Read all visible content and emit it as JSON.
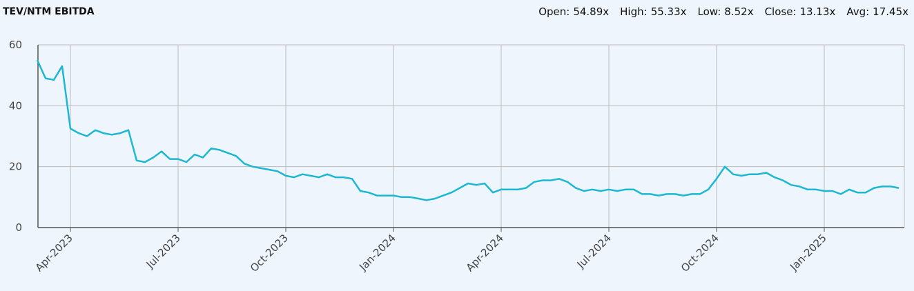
{
  "chart_data": {
    "type": "line",
    "title": "TEV/NTM EBITDA",
    "stats": {
      "labels": [
        "Open:",
        "High:",
        "Low:",
        "Close:",
        "Avg:"
      ],
      "values": [
        54.89,
        55.33,
        8.52,
        13.13,
        17.45
      ],
      "value_labels": [
        "54.89x",
        "55.33x",
        "8.52x",
        "13.13x",
        "17.45x"
      ]
    },
    "categories": [
      null,
      null,
      null,
      null,
      "Apr-2023",
      null,
      null,
      null,
      null,
      null,
      null,
      null,
      null,
      null,
      null,
      null,
      null,
      "Jul-2023",
      null,
      null,
      null,
      null,
      null,
      null,
      null,
      null,
      null,
      null,
      null,
      null,
      "Oct-2023",
      null,
      null,
      null,
      null,
      null,
      null,
      null,
      null,
      null,
      null,
      null,
      null,
      "Jan-2024",
      null,
      null,
      null,
      null,
      null,
      null,
      null,
      null,
      null,
      null,
      null,
      null,
      "Apr-2024",
      null,
      null,
      null,
      null,
      null,
      null,
      null,
      null,
      null,
      null,
      null,
      null,
      "Jul-2024",
      null,
      null,
      null,
      null,
      null,
      null,
      null,
      null,
      null,
      null,
      null,
      null,
      "Oct-2024",
      null,
      null,
      null,
      null,
      null,
      null,
      null,
      null,
      null,
      null,
      null,
      null,
      "Jan-2025",
      null,
      null,
      null,
      null,
      null,
      null,
      null,
      null,
      null
    ],
    "values": [
      55,
      49,
      48.5,
      53,
      32.5,
      31,
      30,
      32,
      31,
      30.5,
      31,
      32,
      22,
      21.5,
      23,
      25,
      22.5,
      22.5,
      21.5,
      24,
      23,
      26,
      25.5,
      24.5,
      23.5,
      21,
      20,
      19.5,
      19,
      18.5,
      17,
      16.5,
      17.5,
      17,
      16.5,
      17.5,
      16.5,
      16.5,
      16,
      12,
      11.5,
      10.5,
      10.5,
      10.5,
      10,
      10,
      9.5,
      9,
      9.5,
      10.5,
      11.5,
      13,
      14.5,
      14,
      14.5,
      11.5,
      12.5,
      12.5,
      12.5,
      13,
      15,
      15.5,
      15.5,
      16,
      15,
      13,
      12,
      12.5,
      12,
      12.5,
      12,
      12.5,
      12.5,
      11,
      11,
      10.5,
      11,
      11,
      10.5,
      11,
      11,
      12.5,
      16,
      20,
      17.5,
      17,
      17.5,
      17.5,
      18,
      16.5,
      15.5,
      14,
      13.5,
      12.5,
      12.5,
      12,
      12,
      11,
      12.5,
      11.5,
      11.5,
      13,
      13.5,
      13.5,
      13
    ],
    "color": "#1bb7d3",
    "ylim": [
      0,
      60
    ],
    "yticks": [
      0,
      20,
      40,
      60
    ],
    "grid": true
  }
}
